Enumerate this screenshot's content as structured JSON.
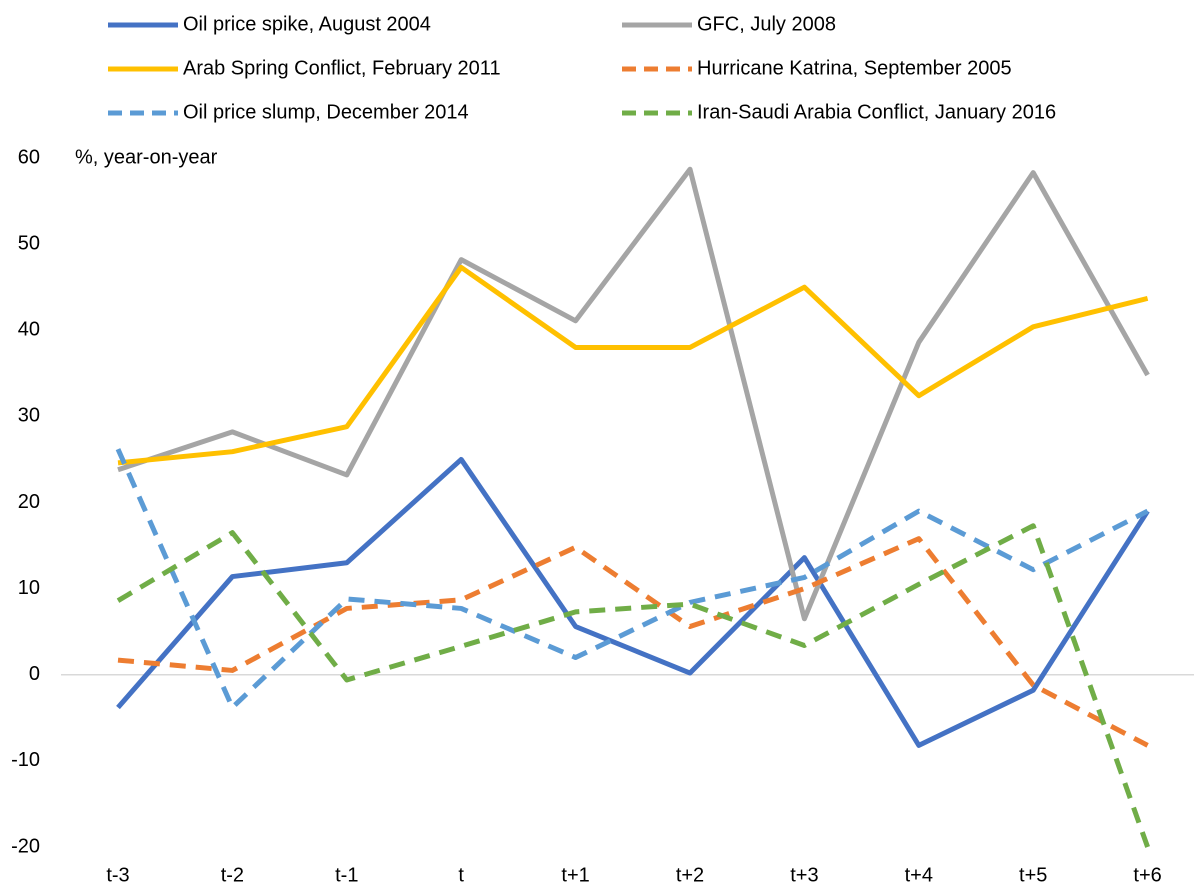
{
  "chart_data": {
    "type": "line",
    "y_label": "%, year-on-year",
    "categories": [
      "t-3",
      "t-2",
      "t-1",
      "t",
      "t+1",
      "t+2",
      "t+3",
      "t+4",
      "t+5",
      "t+6"
    ],
    "series": [
      {
        "name": "Oil price spike, August 2004",
        "color": "#4472c4",
        "dashed": false,
        "values": [
          -3.8,
          11.4,
          13,
          25,
          5.6,
          0.2,
          13.6,
          -8.2,
          -1.8,
          19
        ]
      },
      {
        "name": "GFC, July 2008",
        "color": "#a5a5a5",
        "dashed": false,
        "values": [
          23.8,
          28.2,
          23.2,
          48.2,
          41.1,
          58.7,
          6.5,
          38.6,
          58.3,
          34.8
        ]
      },
      {
        "name": "Arab Spring Conflict, February 2011",
        "color": "#ffc000",
        "dashed": false,
        "values": [
          24.6,
          25.9,
          28.8,
          47.3,
          38,
          38,
          45,
          32.4,
          40.4,
          43.7
        ]
      },
      {
        "name": "Hurricane Katrina, September 2005",
        "color": "#ed7d31",
        "dashed": true,
        "values": [
          1.7,
          0.5,
          7.7,
          8.7,
          14.8,
          5.6,
          10,
          15.8,
          -1.2,
          -8.2
        ]
      },
      {
        "name": "Oil price slump, December 2014",
        "color": "#5b9bd5",
        "dashed": true,
        "values": [
          26.2,
          -3.8,
          8.8,
          7.7,
          2,
          8.4,
          11.3,
          19,
          12.2,
          19
        ]
      },
      {
        "name": "Iran-Saudi Arabia Conflict, January 2016",
        "color": "#70ad47",
        "dashed": true,
        "values": [
          8.6,
          16.5,
          -0.6,
          3.3,
          7.3,
          8.2,
          3.4,
          10.5,
          17.3,
          -20
        ]
      }
    ],
    "ylim": [
      -20,
      60
    ],
    "yticks": [
      -20,
      -10,
      0,
      10,
      20,
      30,
      40,
      50,
      60
    ],
    "grid": false
  }
}
